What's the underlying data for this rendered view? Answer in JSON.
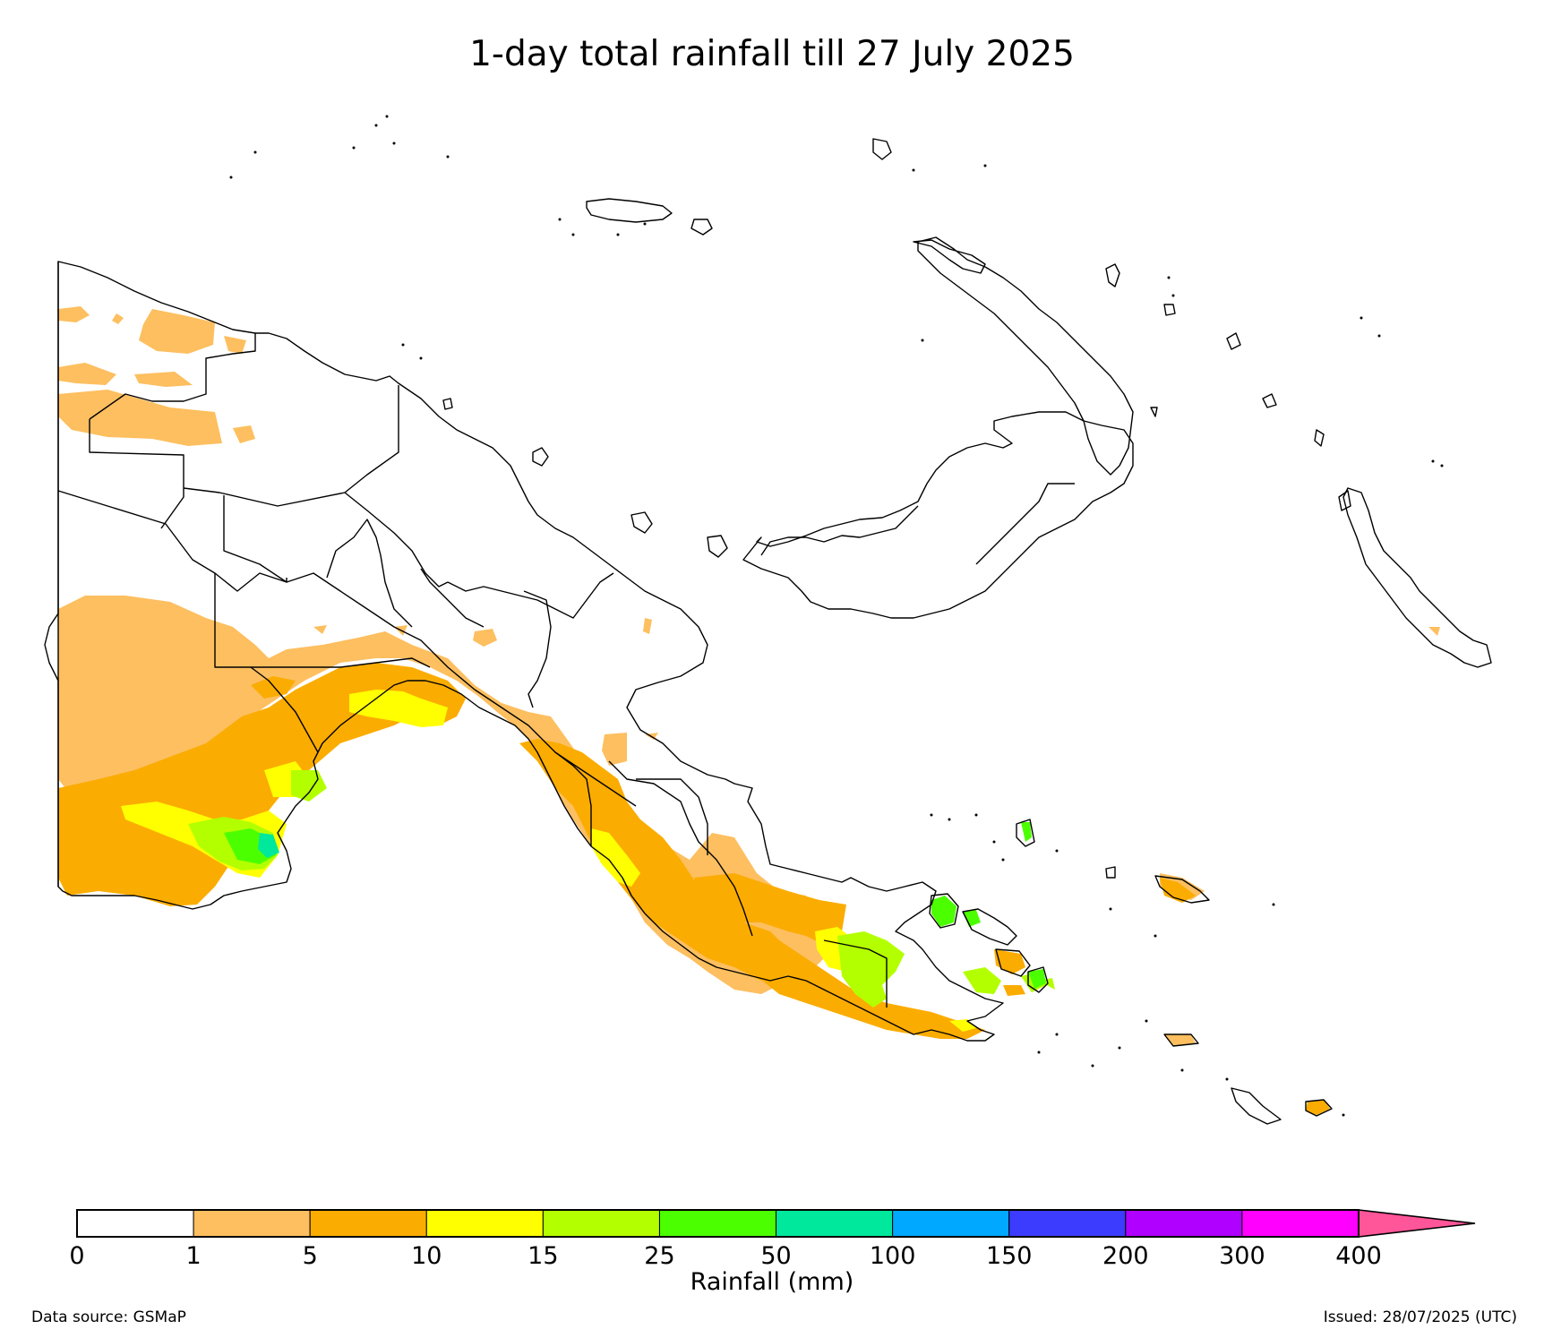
{
  "title": "1-day total rainfall till 27 July 2025",
  "legend": {
    "title": "Rainfall (mm)",
    "ticks": [
      "0",
      "1",
      "5",
      "10",
      "15",
      "25",
      "50",
      "100",
      "150",
      "200",
      "300",
      "400"
    ],
    "colors": [
      "#ffffff",
      "#fdbf5f",
      "#fbac00",
      "#ffff00",
      "#b3ff00",
      "#4cff00",
      "#00e89c",
      "#00a8ff",
      "#3c3cff",
      "#b000ff",
      "#ff00ff",
      "#ff5599"
    ]
  },
  "footer": {
    "source": "Data source: GSMaP",
    "issued": "Issued: 28/07/2025 (UTC)"
  }
}
